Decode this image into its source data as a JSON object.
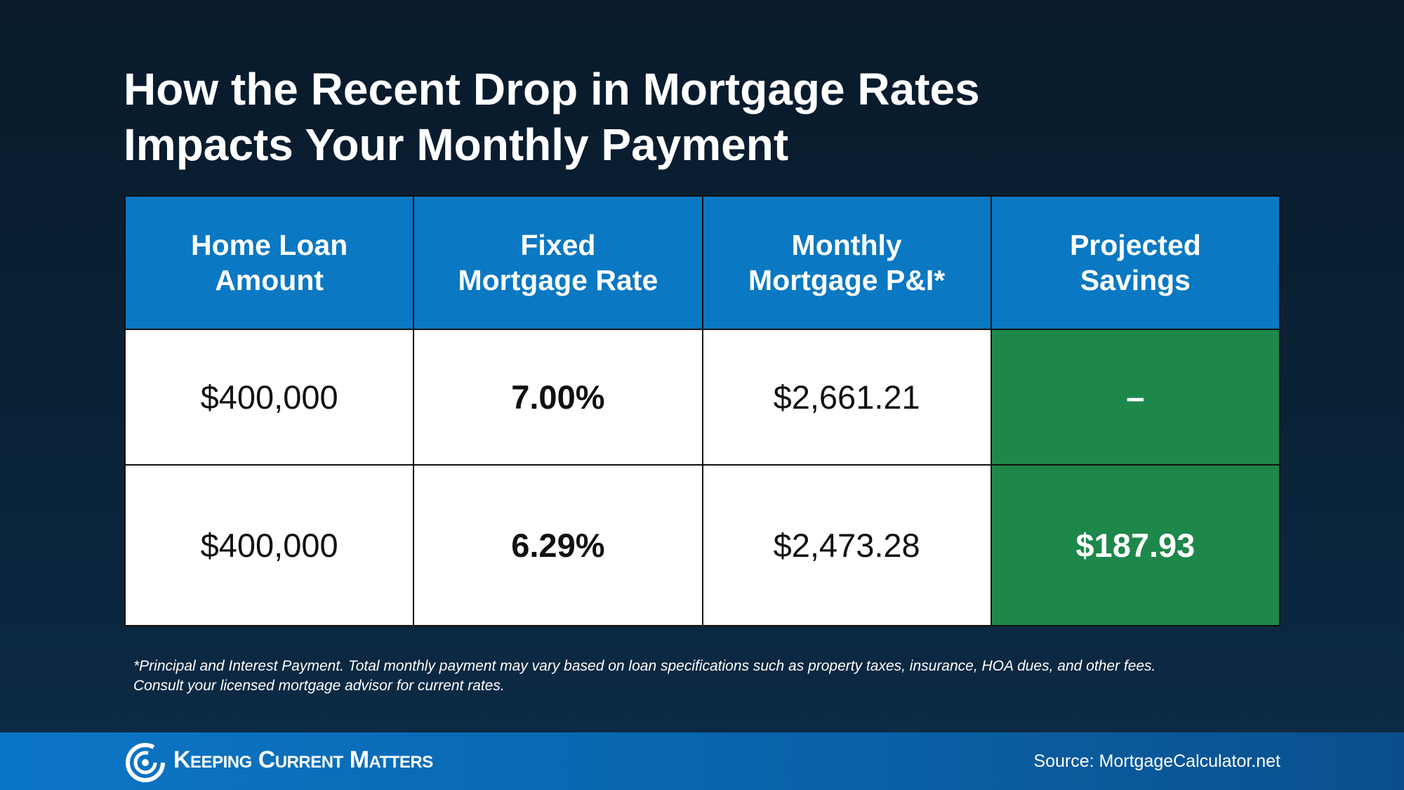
{
  "title": {
    "lines": [
      "How the Recent Drop in Mortgage Rates",
      "Impacts Your Monthly Payment"
    ]
  },
  "table": {
    "headers": [
      [
        "Home Loan",
        "Amount"
      ],
      [
        "Fixed",
        "Mortgage Rate"
      ],
      [
        "Monthly",
        "Mortgage P&I*"
      ],
      [
        "Projected",
        "Savings"
      ]
    ],
    "rows": [
      [
        "$400,000",
        "7.00%",
        "$2,661.21",
        "–"
      ],
      [
        "$400,000",
        "6.29%",
        "$2,473.28",
        "$187.93"
      ]
    ]
  },
  "footnote": {
    "lines": [
      "*Principal and Interest Payment. Total monthly payment may vary based on loan specifications such as property taxes, insurance, HOA dues, and other fees.",
      "Consult your licensed mortgage advisor for current rates."
    ]
  },
  "footer": {
    "brand": "Keeping Current Matters",
    "source": "Source: MortgageCalculator.net"
  }
}
